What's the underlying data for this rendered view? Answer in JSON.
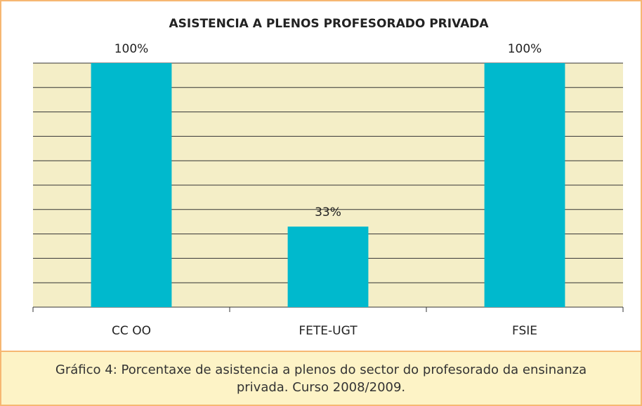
{
  "chart_data": {
    "type": "bar",
    "title": "ASISTENCIA A PLENOS PROFESORADO PRIVADA",
    "categories": [
      "CC OO",
      "FETE-UGT",
      "FSIE"
    ],
    "values": [
      100,
      33,
      100
    ],
    "value_labels": [
      "100%",
      "33%",
      "100%"
    ],
    "color": "#00b9cd",
    "ylim": [
      0,
      100
    ],
    "yticks": [
      0,
      10,
      20,
      30,
      40,
      50,
      60,
      70,
      80,
      90,
      100
    ],
    "grid": true,
    "caption": "Gráfico 4: Porcentaxe de asistencia a plenos do sector do profesorado da ensinanza privada. Curso 2008/2009."
  }
}
